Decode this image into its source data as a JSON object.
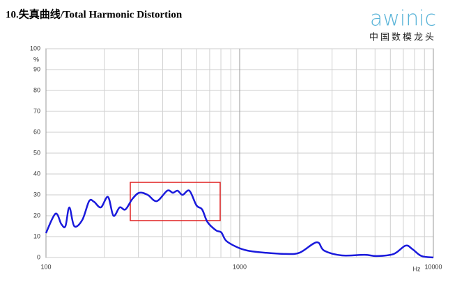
{
  "chart_data": {
    "type": "line",
    "title": "10.失真曲线/Total Harmonic Distortion",
    "logo": "awinic",
    "tagline": "中国数模龙头",
    "y_unit": "%",
    "x_unit": "Hz",
    "log_x": true,
    "grid": true,
    "xlim": [
      100,
      10000
    ],
    "xticks": [
      100,
      1000,
      10000
    ],
    "xminorticks": [
      200,
      300,
      400,
      500,
      600,
      700,
      800,
      900,
      2000,
      3000,
      4000,
      5000,
      6000,
      7000,
      8000,
      9000
    ],
    "ylim": [
      0,
      100
    ],
    "yticks": [
      0,
      10,
      20,
      30,
      40,
      50,
      60,
      70,
      80,
      90,
      100
    ],
    "series": [
      {
        "color": "#1a1adc",
        "x": [
          100,
          112,
          120,
          126,
          132,
          140,
          154,
          167,
          177,
          192,
          209,
          223,
          240,
          257,
          279,
          303,
          335,
          373,
          423,
          452,
          478,
          507,
          550,
          598,
          640,
          682,
          755,
          804,
          852,
          967,
          1100,
          1350,
          1730,
          2040,
          2500,
          2730,
          3370,
          4420,
          5100,
          6240,
          7190,
          7800,
          8690,
          10000
        ],
        "values": [
          11.7,
          21,
          16,
          15,
          24,
          15,
          18,
          27,
          26.7,
          24,
          29,
          20,
          24,
          23,
          28,
          31,
          30,
          27,
          32,
          31,
          32,
          30,
          32,
          25,
          23,
          17,
          13,
          12,
          8,
          5,
          3.3,
          2.3,
          1.7,
          2.3,
          7.3,
          3.3,
          1,
          1.3,
          0.7,
          1.7,
          5.7,
          4,
          0.7,
          0
        ]
      }
    ]
  }
}
